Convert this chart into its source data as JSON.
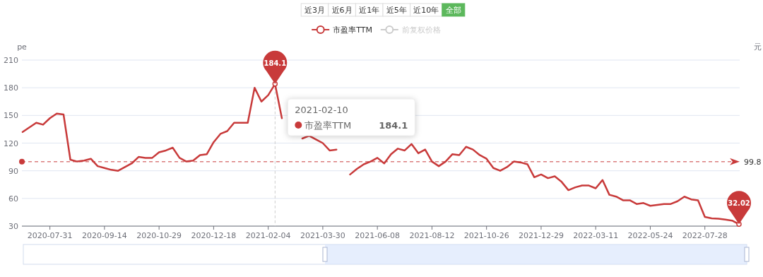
{
  "chart_data": {
    "type": "line",
    "ylabel": "pe",
    "y2label": "元",
    "ylim": [
      30,
      210
    ],
    "yticks": [
      30,
      60,
      90,
      120,
      150,
      180,
      210
    ],
    "grid": "y",
    "legend": "top",
    "categories": [
      null,
      null,
      null,
      null,
      "2020-07-31",
      null,
      null,
      null,
      null,
      null,
      null,
      null,
      "2020-09-14",
      null,
      null,
      null,
      null,
      null,
      null,
      null,
      "2020-10-29",
      null,
      null,
      null,
      null,
      null,
      null,
      null,
      "2020-12-18",
      null,
      null,
      null,
      null,
      null,
      null,
      null,
      "2021-02-04",
      null,
      null,
      null,
      null,
      null,
      null,
      null,
      "2021-03-30",
      null,
      null,
      null,
      null,
      null,
      null,
      null,
      "2021-06-08",
      null,
      null,
      null,
      null,
      null,
      null,
      null,
      "2021-08-12",
      null,
      null,
      null,
      null,
      null,
      null,
      null,
      "2021-10-26",
      null,
      null,
      null,
      null,
      null,
      null,
      null,
      "2021-12-29",
      null,
      null,
      null,
      null,
      null,
      null,
      null,
      "2022-03-11",
      null,
      null,
      null,
      null,
      null,
      null,
      null,
      "2022-05-24",
      null,
      null,
      null,
      null,
      null,
      null,
      null,
      "2022-07-28",
      null,
      null,
      null,
      null,
      null
    ],
    "series": [
      {
        "name": "市盈率TTM",
        "color": "#c83a3a",
        "values": [
          132,
          137,
          142,
          140,
          147,
          152,
          151,
          102,
          100,
          101,
          103,
          95,
          93,
          91,
          90,
          94,
          98,
          105,
          104,
          104,
          110,
          112,
          115,
          104,
          100,
          101,
          107,
          108,
          121,
          130,
          133,
          142,
          142,
          142,
          180,
          165,
          172,
          184.1,
          147,
          null,
          null,
          125,
          128,
          124,
          120,
          112,
          113,
          null,
          86,
          92,
          97,
          100,
          104,
          98,
          108,
          114,
          112,
          119,
          109,
          113,
          100,
          95,
          100,
          108,
          107,
          116,
          113,
          107,
          103,
          93,
          90,
          94,
          100,
          99,
          97,
          83,
          86,
          82,
          84,
          78,
          69,
          72,
          74,
          74,
          71,
          80,
          64,
          62,
          58,
          58,
          54,
          55,
          52,
          53,
          54,
          54,
          57,
          62,
          59,
          58,
          40,
          38.5,
          38,
          37,
          36,
          32.02
        ]
      },
      {
        "name": "前复权价格",
        "color": "#cccccc",
        "axis": "y2",
        "values": [
          null,
          null,
          null,
          null,
          null,
          null,
          null,
          null,
          null,
          null,
          null,
          null,
          null,
          null,
          null,
          null,
          null,
          null,
          null,
          null,
          null,
          null,
          null,
          null,
          null,
          null,
          null,
          null,
          null,
          null,
          null,
          null,
          null,
          null,
          null,
          null,
          null,
          null,
          null,
          null,
          null,
          null,
          null,
          null,
          null,
          null,
          null,
          null,
          null,
          null,
          null,
          null,
          null,
          null,
          null,
          null,
          null,
          null,
          null,
          null,
          null,
          null,
          null,
          null,
          null,
          null,
          null,
          null,
          null,
          null,
          null,
          null,
          null,
          null,
          null,
          null,
          null,
          null,
          null,
          null,
          null,
          null,
          null,
          null,
          null,
          null,
          null,
          null,
          null,
          null,
          null,
          null,
          null,
          null,
          null,
          null,
          null,
          null,
          null,
          null,
          null,
          null,
          null,
          null,
          null,
          null
        ]
      }
    ],
    "ref_lines": [
      {
        "axis": "y",
        "value": 99.8,
        "label": "99.8",
        "color": "#c83a3a",
        "line_style": "dashed"
      }
    ],
    "annotations": [
      {
        "text": "184.1",
        "y": 184.1
      },
      {
        "text": "32.02",
        "y": 32.02
      },
      "2021-02-10",
      "市盈率TTM",
      "184.1",
      "近3月",
      "近6月",
      "近1年",
      "近5年",
      "近10年",
      "全部"
    ]
  }
}
